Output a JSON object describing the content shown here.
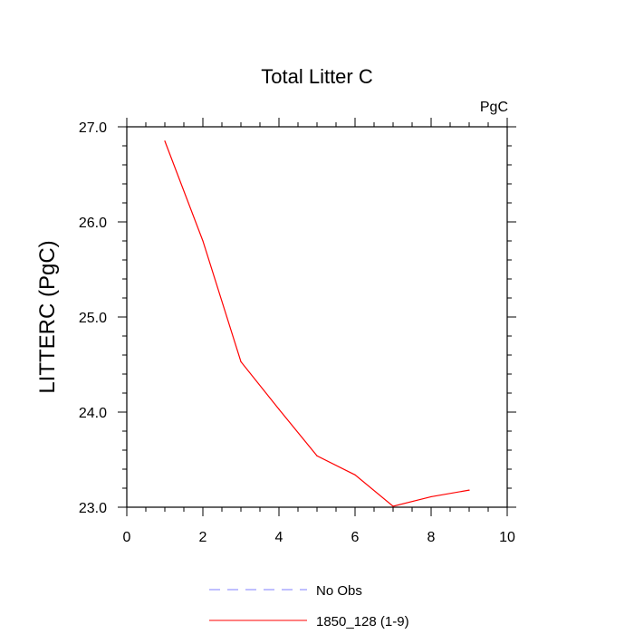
{
  "chart_data": {
    "type": "line",
    "title": "Total Litter C",
    "units_label": "PgC",
    "xlabel": "",
    "ylabel": "LITTERC  (PgC)",
    "xlim": [
      0,
      10
    ],
    "ylim": [
      23.0,
      27.0
    ],
    "x_ticks": [
      0,
      2,
      4,
      6,
      8,
      10
    ],
    "x_tick_labels": [
      "0",
      "2",
      "4",
      "6",
      "8",
      "10"
    ],
    "y_ticks": [
      23.0,
      24.0,
      25.0,
      26.0,
      27.0
    ],
    "y_tick_labels": [
      "23.0",
      "24.0",
      "25.0",
      "26.0",
      "27.0"
    ],
    "series": [
      {
        "name": "No Obs",
        "color": "#7f7fff",
        "dash": true,
        "x": [],
        "y": []
      },
      {
        "name": "1850_128 (1-9)",
        "color": "#ff0000",
        "dash": false,
        "x": [
          1,
          2,
          3,
          4,
          5,
          6,
          7,
          8,
          9
        ],
        "y": [
          26.85,
          25.8,
          24.53,
          24.03,
          23.54,
          23.34,
          23.01,
          23.11,
          23.18
        ]
      }
    ],
    "legend": {
      "position": "bottom",
      "entries": [
        "No Obs",
        "1850_128 (1-9)"
      ]
    },
    "grid": false
  }
}
